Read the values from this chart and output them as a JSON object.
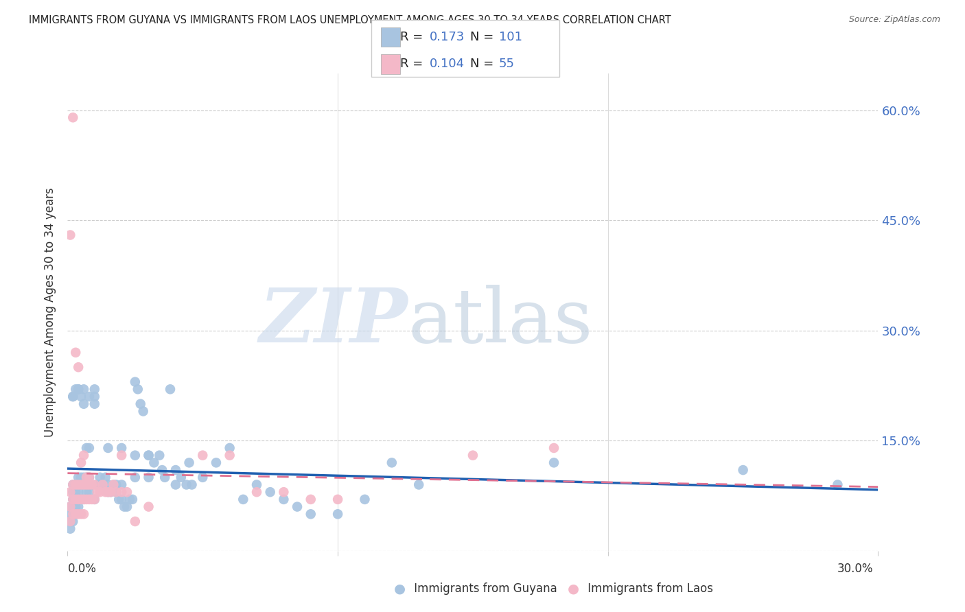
{
  "title": "IMMIGRANTS FROM GUYANA VS IMMIGRANTS FROM LAOS UNEMPLOYMENT AMONG AGES 30 TO 34 YEARS CORRELATION CHART",
  "source": "Source: ZipAtlas.com",
  "ylabel": "Unemployment Among Ages 30 to 34 years",
  "xlim": [
    0.0,
    0.3
  ],
  "ylim": [
    0.0,
    0.65
  ],
  "yticks": [
    0.0,
    0.15,
    0.3,
    0.45,
    0.6
  ],
  "ytick_labels": [
    "",
    "15.0%",
    "30.0%",
    "45.0%",
    "60.0%"
  ],
  "guyana_color": "#a8c4e0",
  "laos_color": "#f4b8c8",
  "guyana_line_color": "#2060b0",
  "laos_line_color": "#e07090",
  "guyana_R": 0.173,
  "guyana_N": 101,
  "laos_R": 0.104,
  "laos_N": 55,
  "background_color": "#ffffff",
  "grid_color": "#cccccc",
  "guyana_x": [
    0.001,
    0.001,
    0.001,
    0.001,
    0.002,
    0.002,
    0.002,
    0.002,
    0.002,
    0.002,
    0.003,
    0.003,
    0.003,
    0.003,
    0.003,
    0.004,
    0.004,
    0.004,
    0.004,
    0.005,
    0.005,
    0.005,
    0.006,
    0.006,
    0.006,
    0.007,
    0.007,
    0.008,
    0.008,
    0.009,
    0.01,
    0.01,
    0.011,
    0.012,
    0.013,
    0.014,
    0.015,
    0.016,
    0.017,
    0.018,
    0.019,
    0.02,
    0.021,
    0.022,
    0.023,
    0.024,
    0.025,
    0.026,
    0.027,
    0.028,
    0.03,
    0.032,
    0.034,
    0.036,
    0.038,
    0.04,
    0.042,
    0.044,
    0.046,
    0.05,
    0.055,
    0.06,
    0.065,
    0.07,
    0.075,
    0.08,
    0.085,
    0.09,
    0.1,
    0.11,
    0.002,
    0.003,
    0.004,
    0.005,
    0.006,
    0.007,
    0.008,
    0.01,
    0.012,
    0.015,
    0.018,
    0.02,
    0.025,
    0.03,
    0.035,
    0.04,
    0.045,
    0.002,
    0.004,
    0.006,
    0.008,
    0.01,
    0.015,
    0.02,
    0.025,
    0.03,
    0.12,
    0.13,
    0.25,
    0.285,
    0.18
  ],
  "guyana_y": [
    0.06,
    0.05,
    0.04,
    0.03,
    0.09,
    0.08,
    0.07,
    0.06,
    0.05,
    0.04,
    0.09,
    0.08,
    0.07,
    0.06,
    0.05,
    0.1,
    0.09,
    0.08,
    0.06,
    0.1,
    0.09,
    0.07,
    0.1,
    0.09,
    0.07,
    0.1,
    0.08,
    0.1,
    0.08,
    0.09,
    0.22,
    0.21,
    0.09,
    0.1,
    0.09,
    0.1,
    0.09,
    0.08,
    0.09,
    0.08,
    0.07,
    0.07,
    0.06,
    0.06,
    0.07,
    0.07,
    0.23,
    0.22,
    0.2,
    0.19,
    0.13,
    0.12,
    0.13,
    0.1,
    0.22,
    0.09,
    0.1,
    0.09,
    0.09,
    0.1,
    0.12,
    0.14,
    0.07,
    0.09,
    0.08,
    0.07,
    0.06,
    0.05,
    0.05,
    0.07,
    0.21,
    0.22,
    0.22,
    0.21,
    0.2,
    0.14,
    0.14,
    0.07,
    0.09,
    0.08,
    0.09,
    0.09,
    0.1,
    0.1,
    0.11,
    0.11,
    0.12,
    0.21,
    0.22,
    0.22,
    0.21,
    0.2,
    0.14,
    0.14,
    0.13,
    0.13,
    0.12,
    0.09,
    0.11,
    0.09,
    0.12
  ],
  "laos_x": [
    0.001,
    0.001,
    0.001,
    0.002,
    0.002,
    0.002,
    0.003,
    0.003,
    0.003,
    0.004,
    0.004,
    0.004,
    0.005,
    0.005,
    0.005,
    0.006,
    0.006,
    0.006,
    0.007,
    0.007,
    0.008,
    0.008,
    0.009,
    0.009,
    0.01,
    0.01,
    0.011,
    0.012,
    0.013,
    0.014,
    0.015,
    0.016,
    0.017,
    0.018,
    0.02,
    0.022,
    0.05,
    0.06,
    0.07,
    0.08,
    0.09,
    0.1,
    0.001,
    0.002,
    0.003,
    0.004,
    0.005,
    0.006,
    0.007,
    0.008,
    0.15,
    0.18,
    0.02,
    0.025,
    0.03
  ],
  "laos_y": [
    0.08,
    0.06,
    0.04,
    0.09,
    0.07,
    0.05,
    0.09,
    0.07,
    0.05,
    0.09,
    0.07,
    0.05,
    0.09,
    0.07,
    0.05,
    0.09,
    0.07,
    0.05,
    0.09,
    0.07,
    0.09,
    0.07,
    0.09,
    0.07,
    0.09,
    0.07,
    0.08,
    0.08,
    0.09,
    0.08,
    0.08,
    0.08,
    0.09,
    0.08,
    0.08,
    0.08,
    0.13,
    0.13,
    0.08,
    0.08,
    0.07,
    0.07,
    0.43,
    0.59,
    0.27,
    0.25,
    0.12,
    0.13,
    0.1,
    0.1,
    0.13,
    0.14,
    0.13,
    0.04,
    0.06
  ]
}
